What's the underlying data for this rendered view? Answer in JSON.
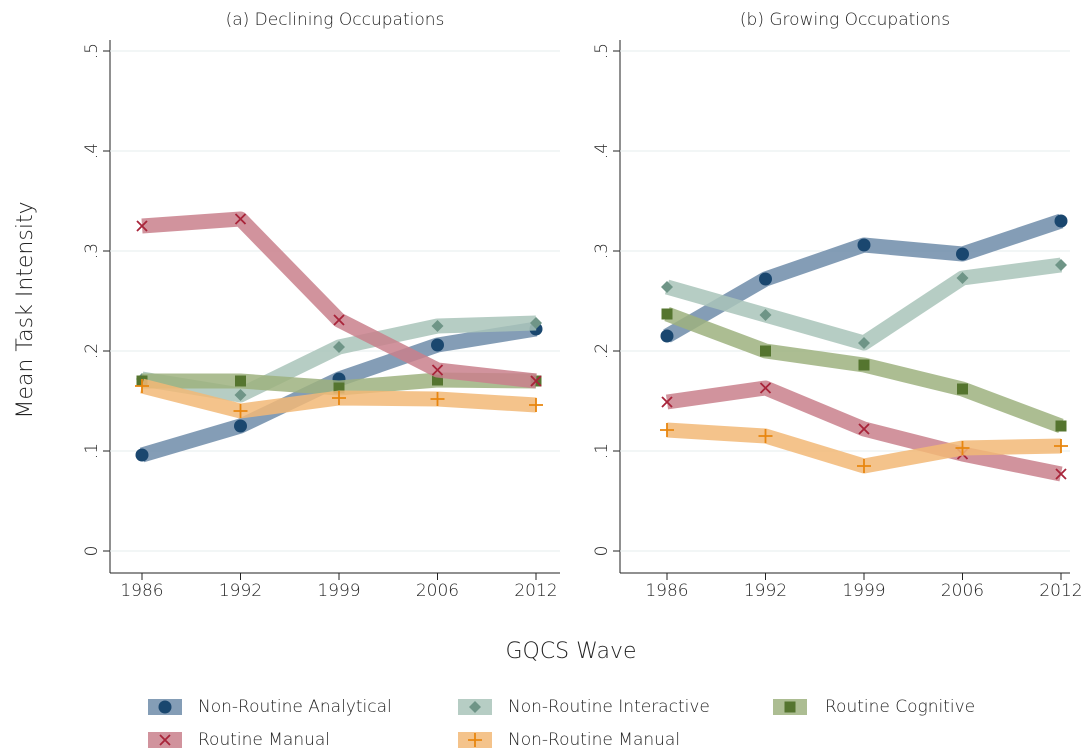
{
  "ylabel": "Mean Task Intensity",
  "xlabel": "GQCS Wave",
  "chart_data": [
    {
      "type": "line",
      "title": "(a) Declining Occupations",
      "categories": [
        "1986",
        "1992",
        "1999",
        "2006",
        "2012"
      ],
      "ylim": [
        0,
        0.5
      ],
      "yticks": [
        0,
        {
          "value": 0.1,
          "label": ".1"
        },
        {
          "value": 0.2,
          "label": ".2"
        },
        {
          "value": 0.3,
          "label": ".3"
        },
        {
          "value": 0.4,
          "label": ".4"
        },
        {
          "value": 0.5,
          "label": ".5"
        }
      ],
      "grid": true,
      "series": [
        {
          "name": "Non-Routine Analytical",
          "color": "#1a476f",
          "band": "#6f8ca9",
          "marker": "circle",
          "values": [
            0.096,
            0.125,
            0.172,
            0.206,
            0.222
          ]
        },
        {
          "name": "Non-Routine Interactive",
          "color": "#6f9587",
          "band": "#a9c4ba",
          "marker": "diamond",
          "values": [
            0.172,
            0.156,
            0.204,
            0.225,
            0.228
          ]
        },
        {
          "name": "Routine Cognitive",
          "color": "#55752f",
          "band": "#9db27f",
          "marker": "square",
          "values": [
            0.17,
            0.17,
            0.163,
            0.171,
            0.17
          ]
        },
        {
          "name": "Routine Manual",
          "color": "#a8243a",
          "band": "#c9808c",
          "marker": "x",
          "values": [
            0.325,
            0.332,
            0.231,
            0.181,
            0.17
          ]
        },
        {
          "name": "Non-Routine Manual",
          "color": "#e8860f",
          "band": "#f2b877",
          "marker": "plus",
          "values": [
            0.165,
            0.14,
            0.153,
            0.152,
            0.146
          ]
        }
      ]
    },
    {
      "type": "line",
      "title": "(b) Growing Occupations",
      "categories": [
        "1986",
        "1992",
        "1999",
        "2006",
        "2012"
      ],
      "ylim": [
        0,
        0.5
      ],
      "yticks": [
        0,
        {
          "value": 0.1,
          "label": ".1"
        },
        {
          "value": 0.2,
          "label": ".2"
        },
        {
          "value": 0.3,
          "label": ".3"
        },
        {
          "value": 0.4,
          "label": ".4"
        },
        {
          "value": 0.5,
          "label": ".5"
        }
      ],
      "grid": true,
      "series": [
        {
          "name": "Non-Routine Analytical",
          "color": "#1a476f",
          "band": "#6f8ca9",
          "marker": "circle",
          "values": [
            0.215,
            0.272,
            0.306,
            0.297,
            0.33
          ]
        },
        {
          "name": "Non-Routine Interactive",
          "color": "#6f9587",
          "band": "#a9c4ba",
          "marker": "diamond",
          "values": [
            0.264,
            0.236,
            0.208,
            0.273,
            0.286
          ]
        },
        {
          "name": "Routine Cognitive",
          "color": "#55752f",
          "band": "#9db27f",
          "marker": "square",
          "values": [
            0.237,
            0.2,
            0.186,
            0.162,
            0.125
          ]
        },
        {
          "name": "Routine Manual",
          "color": "#a8243a",
          "band": "#c9808c",
          "marker": "x",
          "values": [
            0.149,
            0.163,
            0.122,
            0.097,
            0.077
          ]
        },
        {
          "name": "Non-Routine Manual",
          "color": "#e8860f",
          "band": "#f2b877",
          "marker": "plus",
          "values": [
            0.121,
            0.115,
            0.085,
            0.103,
            0.105
          ]
        }
      ]
    }
  ]
}
